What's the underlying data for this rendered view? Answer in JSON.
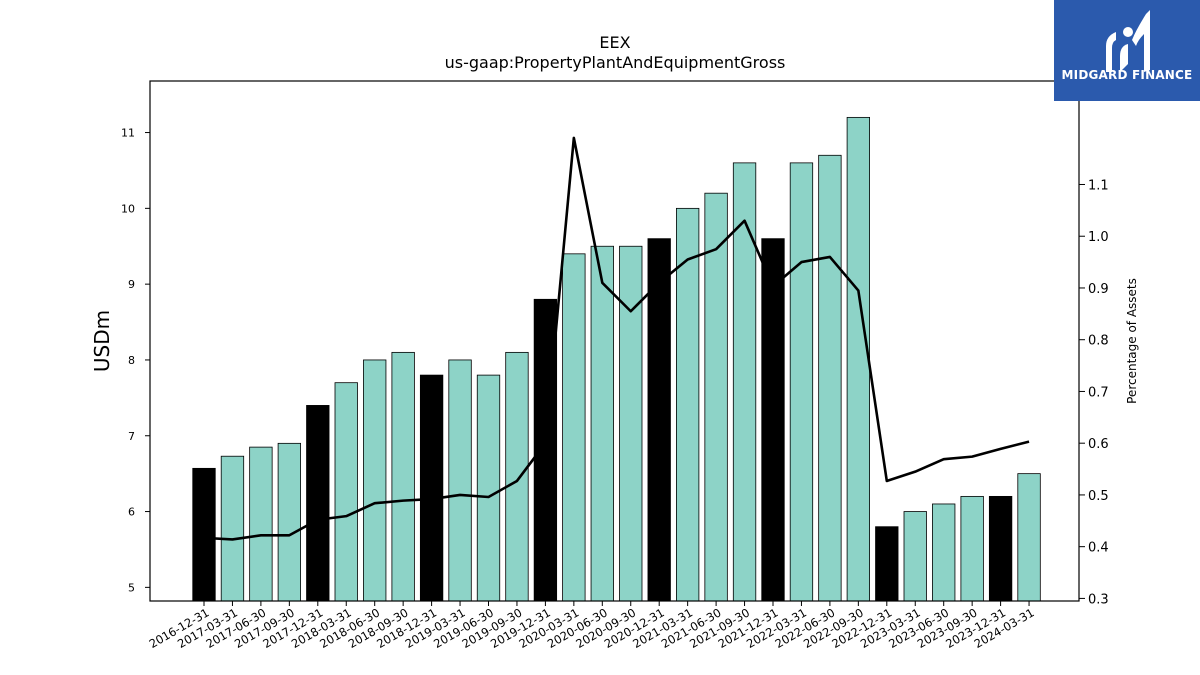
{
  "chart_data": {
    "type": "bar",
    "title": "EEX",
    "subtitle": "us-gaap:PropertyPlantAndEquipmentGross",
    "ylabel": "USDm",
    "y2label": "Percentage of Assets",
    "ylim": [
      4.82,
      11.68
    ],
    "y2lim": [
      0.295,
      1.3
    ],
    "yticks": [
      5,
      6,
      7,
      8,
      9,
      10,
      11
    ],
    "y2ticks": [
      0.3,
      0.4,
      0.5,
      0.6,
      0.7,
      0.8,
      0.9,
      1.0,
      1.1
    ],
    "categories": [
      "2016-12-31",
      "2017-03-31",
      "2017-06-30",
      "2017-09-30",
      "2017-12-31",
      "2018-03-31",
      "2018-06-30",
      "2018-09-30",
      "2018-12-31",
      "2019-03-31",
      "2019-06-30",
      "2019-09-30",
      "2019-12-31",
      "2020-03-31",
      "2020-06-30",
      "2020-09-30",
      "2020-12-31",
      "2021-03-31",
      "2021-06-30",
      "2021-09-30",
      "2021-12-31",
      "2022-03-31",
      "2022-06-30",
      "2022-09-30",
      "2022-12-31",
      "2023-03-31",
      "2023-06-30",
      "2023-09-30",
      "2023-12-31",
      "2024-03-31"
    ],
    "series": [
      {
        "values": [
          6.57,
          6.73,
          6.85,
          6.9,
          7.4,
          7.7,
          8.0,
          8.1,
          7.8,
          8.0,
          7.8,
          8.1,
          8.8,
          9.4,
          9.5,
          9.5,
          9.6,
          10.0,
          10.2,
          10.6,
          9.6,
          10.6,
          10.7,
          11.2,
          5.8,
          6.0,
          6.1,
          6.2,
          6.2,
          6.5
        ]
      },
      {
        "axis": "right",
        "values": [
          0.417,
          0.414,
          0.422,
          0.422,
          0.452,
          0.459,
          0.484,
          0.489,
          0.492,
          0.5,
          0.496,
          0.527,
          0.6,
          1.19,
          0.91,
          0.855,
          0.91,
          0.955,
          0.975,
          1.03,
          0.903,
          0.95,
          0.96,
          0.895,
          0.527,
          0.545,
          0.569,
          0.574,
          0.589,
          0.603
        ]
      }
    ],
    "bar_color": "#8dd3c7",
    "year_end_bar_color": "#000000",
    "line_color": "#000000",
    "grid": false
  },
  "logo": {
    "text": "MIDGARD FINANCE",
    "background": "#2b5aad"
  }
}
